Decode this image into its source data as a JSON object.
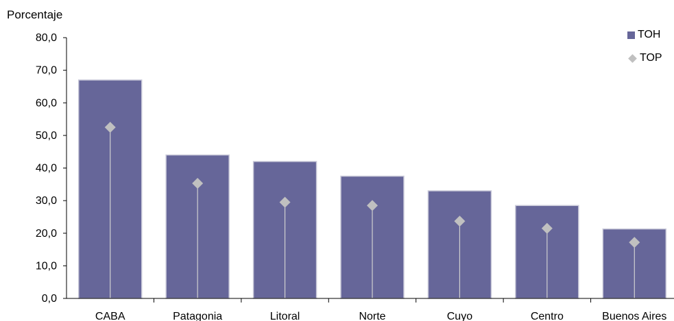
{
  "chart_data": {
    "type": "bar",
    "ylabel": "Porcentaje",
    "xlabel": "",
    "title": "",
    "categories": [
      "CABA",
      "Patagonia",
      "Litoral",
      "Norte",
      "Cuyo",
      "Centro",
      "Buenos Aires"
    ],
    "series": [
      {
        "name": "TOH",
        "type": "bar",
        "color": "#666699",
        "values": [
          67.0,
          44.0,
          42.0,
          37.5,
          33.0,
          28.5,
          21.3
        ]
      },
      {
        "name": "TOP",
        "type": "marker-with-dropline",
        "marker": "diamond",
        "color": "#c0c0c0",
        "values": [
          52.5,
          35.3,
          29.5,
          28.5,
          23.7,
          21.5,
          17.2
        ]
      }
    ],
    "ylim": [
      0,
      80
    ],
    "yticks": [
      "0,0",
      "10,0",
      "20,0",
      "30,0",
      "40,0",
      "50,0",
      "60,0",
      "70,0",
      "80,0"
    ],
    "grid": false,
    "legend_position": "top-right"
  }
}
